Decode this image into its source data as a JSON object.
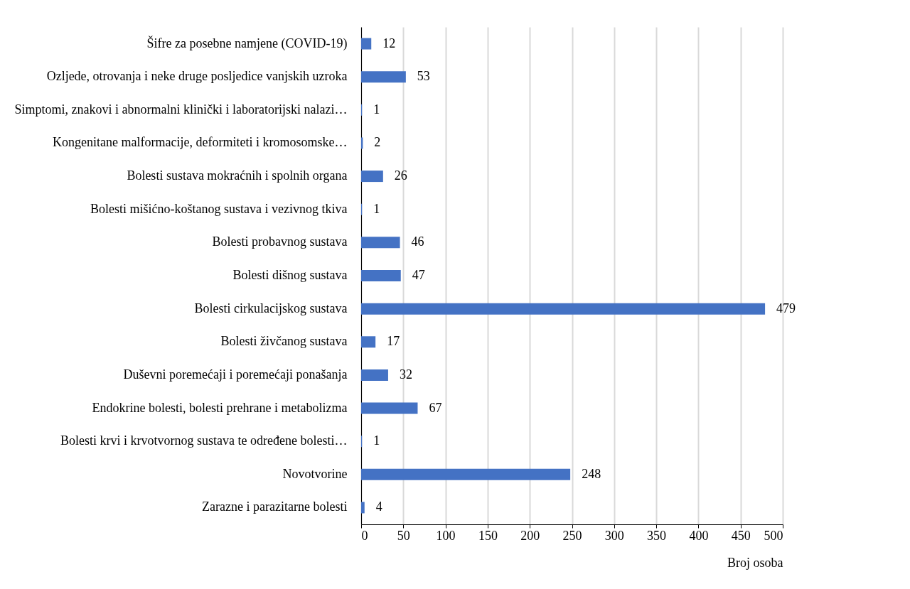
{
  "chart_data": {
    "type": "bar",
    "orientation": "horizontal",
    "xlabel": "Broj osoba",
    "categories": [
      "Šifre za posebne namjene (COVID-19)",
      "Ozljede, otrovanja i neke druge posljedice vanjskih uzroka",
      "Simptomi, znakovi i abnormalni klinički i laboratorijski nalazi…",
      "Kongenitane malformacije, deformiteti i kromosomske…",
      "Bolesti sustava mokraćnih i spolnih organa",
      "Bolesti mišićno-koštanog sustava i vezivnog tkiva",
      "Bolesti probavnog sustava",
      "Bolesti dišnog sustava",
      "Bolesti cirkulacijskog sustava",
      "Bolesti živčanog sustava",
      "Duševni poremećaji i poremećaji ponašanja",
      "Endokrine bolesti, bolesti prehrane i metabolizma",
      "Bolesti krvi i krvotvornog sustava te određene bolesti…",
      "Novotvorine",
      "Zarazne i parazitarne bolesti"
    ],
    "values": [
      12,
      53,
      1,
      2,
      26,
      1,
      46,
      47,
      479,
      17,
      32,
      67,
      1,
      248,
      4
    ],
    "color": "#4472c4",
    "data_labels": true,
    "xlim": [
      0,
      500
    ],
    "xticks": [
      0,
      50,
      100,
      150,
      200,
      250,
      300,
      350,
      400,
      450,
      500
    ],
    "grid": "x"
  }
}
